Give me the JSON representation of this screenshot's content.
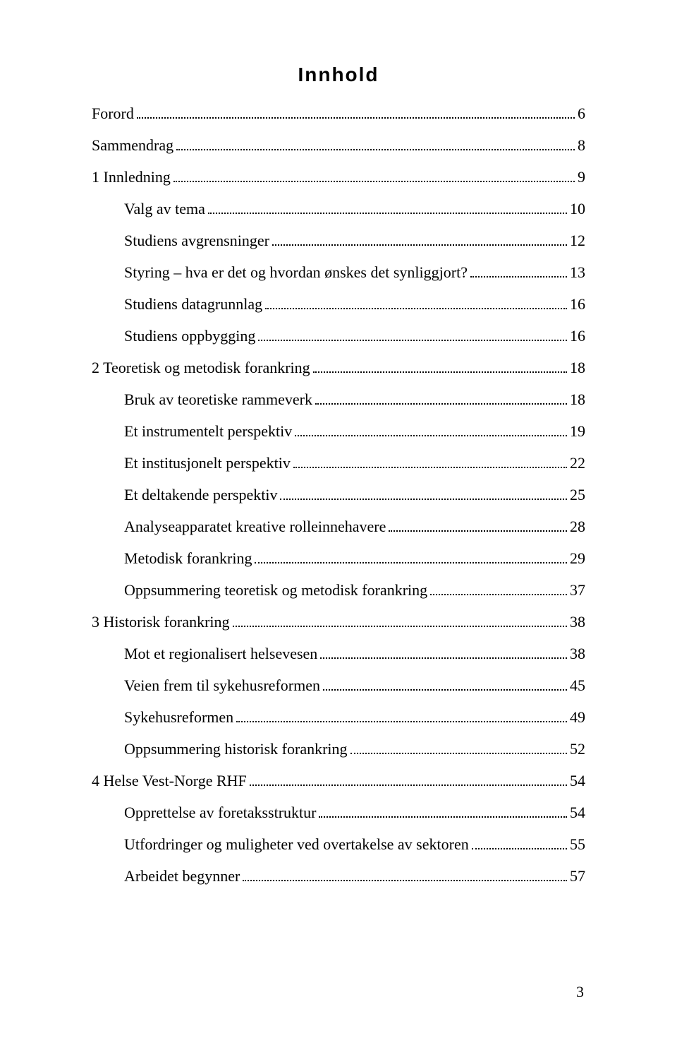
{
  "heading": "Innhold",
  "footer_page": "3",
  "toc": [
    {
      "label": "Forord",
      "page": "6",
      "level": 0
    },
    {
      "label": "Sammendrag",
      "page": "8",
      "level": 0
    },
    {
      "label": "1 Innledning",
      "page": "9",
      "level": 0
    },
    {
      "label": "Valg av tema",
      "page": "10",
      "level": 1
    },
    {
      "label": "Studiens avgrensninger",
      "page": "12",
      "level": 1
    },
    {
      "label": "Styring – hva er det og hvordan ønskes det synliggjort?",
      "page": "13",
      "level": 1
    },
    {
      "label": "Studiens datagrunnlag",
      "page": "16",
      "level": 1
    },
    {
      "label": "Studiens oppbygging",
      "page": "16",
      "level": 1
    },
    {
      "label": "2 Teoretisk og metodisk forankring",
      "page": "18",
      "level": 0
    },
    {
      "label": "Bruk av teoretiske rammeverk",
      "page": "18",
      "level": 1
    },
    {
      "label": "Et instrumentelt perspektiv",
      "page": "19",
      "level": 1
    },
    {
      "label": "Et institusjonelt perspektiv",
      "page": "22",
      "level": 1
    },
    {
      "label": "Et deltakende perspektiv",
      "page": "25",
      "level": 1
    },
    {
      "label": "Analyseapparatet kreative rolleinnehavere",
      "page": "28",
      "level": 1
    },
    {
      "label": "Metodisk forankring",
      "page": "29",
      "level": 1
    },
    {
      "label": "Oppsummering teoretisk og metodisk forankring",
      "page": "37",
      "level": 1
    },
    {
      "label": "3 Historisk forankring",
      "page": "38",
      "level": 0
    },
    {
      "label": "Mot et regionalisert helsevesen",
      "page": "38",
      "level": 1
    },
    {
      "label": "Veien frem til sykehusreformen",
      "page": "45",
      "level": 1
    },
    {
      "label": "Sykehusreformen",
      "page": "49",
      "level": 1
    },
    {
      "label": "Oppsummering historisk forankring",
      "page": "52",
      "level": 1
    },
    {
      "label": "4 Helse Vest-Norge RHF",
      "page": "54",
      "level": 0
    },
    {
      "label": "Opprettelse av foretaksstruktur",
      "page": "54",
      "level": 1
    },
    {
      "label": "Utfordringer og muligheter ved overtakelse av sektoren",
      "page": "55",
      "level": 1
    },
    {
      "label": "Arbeidet begynner",
      "page": "57",
      "level": 1
    }
  ]
}
